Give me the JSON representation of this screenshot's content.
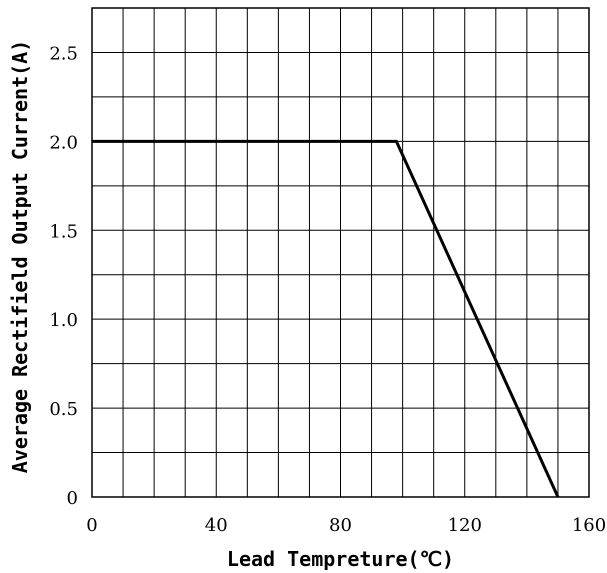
{
  "chart_data": {
    "type": "line",
    "title": "",
    "xlabel": "Lead Tempreture(℃)",
    "ylabel": "Average Rectifield Output Current(A)",
    "xlim": [
      0,
      160
    ],
    "ylim": [
      0,
      2.75
    ],
    "x_ticks": [
      0,
      40,
      80,
      120,
      160
    ],
    "x_tick_labels": [
      "0",
      "40",
      "80",
      "120",
      "160"
    ],
    "y_ticks": [
      0,
      0.5,
      1.0,
      1.5,
      2.0,
      2.5
    ],
    "y_tick_labels": [
      "0",
      "0.5",
      "1.0",
      "1.5",
      "2.0",
      "2.5"
    ],
    "grid": true,
    "x_grid_step": 10,
    "y_grid_step": 0.25,
    "series": [
      {
        "x": [
          0,
          98,
          150
        ],
        "y": [
          2.0,
          2.0,
          0
        ]
      }
    ]
  }
}
